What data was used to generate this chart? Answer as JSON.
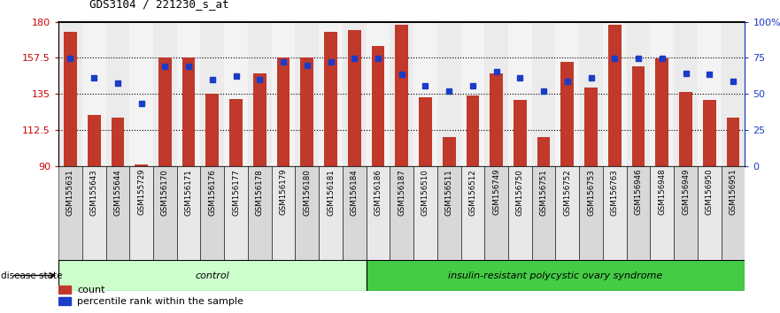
{
  "title": "GDS3104 / 221230_s_at",
  "samples": [
    "GSM155631",
    "GSM155643",
    "GSM155644",
    "GSM155729",
    "GSM156170",
    "GSM156171",
    "GSM156176",
    "GSM156177",
    "GSM156178",
    "GSM156179",
    "GSM156180",
    "GSM156181",
    "GSM156184",
    "GSM156186",
    "GSM156187",
    "GSM156510",
    "GSM156511",
    "GSM156512",
    "GSM156749",
    "GSM156750",
    "GSM156751",
    "GSM156752",
    "GSM156753",
    "GSM156763",
    "GSM156946",
    "GSM156948",
    "GSM156949",
    "GSM156950",
    "GSM156951"
  ],
  "bar_values": [
    174,
    122,
    120,
    91,
    158,
    158,
    135,
    132,
    148,
    158,
    158,
    174,
    175,
    165,
    178,
    133,
    108,
    134,
    148,
    131,
    108,
    155,
    139,
    178,
    152,
    157,
    136,
    131,
    120
  ],
  "percentile_values": [
    157,
    145,
    142,
    129,
    152,
    152,
    144,
    146,
    144,
    155,
    153,
    155,
    157,
    157,
    147,
    140,
    137,
    140,
    149,
    145,
    137,
    143,
    145,
    157,
    157,
    157,
    148,
    147,
    143
  ],
  "control_count": 13,
  "disease_count": 16,
  "ymin": 90,
  "ymax": 180,
  "yticks": [
    90,
    112.5,
    135,
    157.5,
    180
  ],
  "ytick_labels": [
    "90",
    "112.5",
    "135",
    "157.5",
    "180"
  ],
  "bar_color": "#c0392b",
  "dot_color": "#1a3cc7",
  "control_label": "control",
  "disease_label": "insulin-resistant polycystic ovary syndrome",
  "control_bg": "#ccffcc",
  "disease_bg": "#44cc44",
  "legend_count_label": "count",
  "legend_pct_label": "percentile rank within the sample",
  "right_ytick_positions": [
    90,
    112.5,
    135,
    157.5,
    180
  ],
  "right_ytick_labels": [
    "0",
    "25",
    "50",
    "75",
    "100%"
  ],
  "tick_bg_even": "#d8d8d8",
  "tick_bg_odd": "#e8e8e8"
}
